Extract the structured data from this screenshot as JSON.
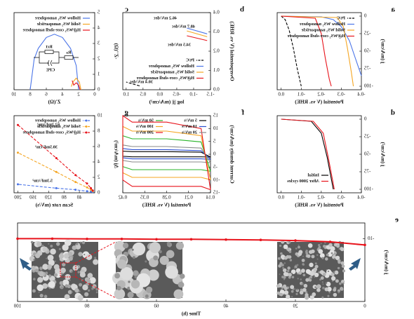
{
  "chart_data": [
    {
      "type": "line",
      "label": "a",
      "xlabel": "Potential (V vs. RHE)",
      "ylabel": "j (mA/cm²)",
      "xlim": [
        -0.4,
        0.02
      ],
      "ylim": [
        -105,
        5
      ],
      "xticks": [
        -0.4,
        -0.3,
        -0.2,
        -0.1,
        {
          "value": 0,
          "label": "0.0"
        }
      ],
      "yticks": [
        0,
        -25,
        -50,
        -75,
        -100
      ],
      "series": [
        {
          "name": "Pt/C",
          "color": "#000000",
          "dashed": true,
          "x": [
            0,
            -0.02,
            -0.04,
            -0.06,
            -0.08,
            -0.1
          ],
          "values": [
            0,
            -5,
            -20,
            -45,
            -75,
            -100
          ]
        },
        {
          "name": "Hollow WS₂ nanosphere",
          "color": "#4a74e8",
          "x": [
            0,
            -0.2,
            -0.26,
            -0.3,
            -0.34,
            -0.37,
            -0.4
          ],
          "values": [
            0,
            -1,
            -5,
            -15,
            -35,
            -60,
            -85
          ]
        },
        {
          "name": "Solid WS₂ nanoparticle",
          "color": "#f5a623",
          "x": [
            0,
            -0.28,
            -0.31,
            -0.33,
            -0.35,
            -0.36
          ],
          "values": [
            0,
            -2,
            -15,
            -45,
            -80,
            -100
          ]
        },
        {
          "name": "H@WS₂ core-shell nanosphere",
          "color": "#e8141c",
          "x": [
            0,
            -0.17,
            -0.2,
            -0.22,
            -0.24,
            -0.25
          ],
          "values": [
            0,
            -3,
            -25,
            -60,
            -90,
            -100
          ]
        }
      ]
    },
    {
      "type": "line",
      "label": "b",
      "xlabel": "log |j| (mA/cm²)",
      "ylabel": "Overpotential (V vs. RHE)",
      "xlim": [
        -1.5,
        1.1
      ],
      "ylim": [
        0,
        0.4
      ],
      "xticks": [
        -1.5,
        {
          "value": -1,
          "label": "-1.0"
        },
        -0.5,
        {
          "value": 0,
          "label": "0.0"
        },
        0.5,
        {
          "value": 1,
          "label": "1.0"
        }
      ],
      "yticks": [
        {
          "value": 0,
          "label": "0.0"
        },
        0.1,
        0.2,
        0.3,
        0.4
      ],
      "series": [
        {
          "name": "Pt/C",
          "color": "#000000",
          "dashed": true,
          "x": [
            0.6,
            0.8,
            1.0
          ],
          "values": [
            0.02,
            0.03,
            0.04
          ]
        },
        {
          "name": "Hollow WS₂ nanosphere",
          "color": "#4a74e8",
          "x": [
            -1.4,
            -0.8
          ],
          "values": [
            0.29,
            0.32
          ]
        },
        {
          "name": "Solid WS₂ nanoparticle",
          "color": "#f5a623",
          "x": [
            -1.4,
            -0.8
          ],
          "values": [
            0.275,
            0.305
          ]
        },
        {
          "name": "H@WS₂ core-shell nanosphere",
          "color": "#e8141c",
          "x": [
            -1.4,
            -0.8
          ],
          "values": [
            0.255,
            0.28
          ]
        }
      ],
      "annotations": [
        {
          "text": "30.4 mV/dec",
          "color": "#000000"
        },
        {
          "text": "46.2 mV/dec",
          "color": "#f5a623"
        },
        {
          "text": "48.7 mV/dec",
          "color": "#4a74e8"
        },
        {
          "text": "34.5 mV/dec",
          "color": "#e8141c"
        }
      ]
    },
    {
      "type": "line",
      "label": "c",
      "xlabel": "Z'(Ω)",
      "ylabel": "-Z''(Ω)",
      "xlim": [
        0,
        10
      ],
      "ylim": [
        0,
        5
      ],
      "xticks": [
        0,
        2,
        4,
        6,
        8,
        10
      ],
      "yticks": [
        0,
        1,
        2,
        3,
        4,
        5
      ],
      "series": [
        {
          "name": "Hollow WS₂ nanosphere",
          "color": "#4a74e8",
          "x": [
            2,
            2.3,
            3,
            4,
            5,
            6,
            7,
            7.5,
            8
          ],
          "values": [
            0,
            1.57,
            2.68,
            3.39,
            3.6,
            3.39,
            2.68,
            1.99,
            0
          ]
        },
        {
          "name": "Solid WS₂ nanoparticle",
          "color": "#f5a623",
          "x": [
            1.7,
            1.9,
            2.3,
            2.7,
            2.9
          ],
          "values": [
            0,
            0.5,
            0.75,
            0.5,
            0.2
          ]
        },
        {
          "name": "H@WS₂ core-shell nanosphere",
          "color": "#e8141c",
          "x": [
            1.8,
            2.0,
            2.3,
            2.6,
            2.8
          ],
          "values": [
            0,
            0.3,
            0.45,
            0.3,
            0.6
          ]
        }
      ],
      "circuit": [
        "Rₛ",
        "Rct",
        "CPE"
      ]
    },
    {
      "type": "line",
      "label": "d",
      "xlabel": "Potential (V vs. RHE)",
      "ylabel": "j (mA/cm²)",
      "xlim": [
        -0.4,
        0.02
      ],
      "ylim": [
        -105,
        5
      ],
      "xticks": [
        -0.4,
        -0.3,
        -0.2,
        -0.1,
        {
          "value": 0,
          "label": "0.0"
        }
      ],
      "yticks": [
        0,
        -25,
        -50,
        -75,
        -100
      ],
      "series": [
        {
          "name": "Initial",
          "color": "#000000",
          "x": [
            0,
            -0.15,
            -0.2,
            -0.23,
            -0.25,
            -0.26
          ],
          "values": [
            0,
            -3,
            -20,
            -55,
            -85,
            -100
          ]
        },
        {
          "name": "After 2000 cycles",
          "color": "#e8141c",
          "x": [
            0,
            -0.16,
            -0.21,
            -0.235,
            -0.255,
            -0.265
          ],
          "values": [
            0,
            -3,
            -20,
            -55,
            -85,
            -100
          ]
        }
      ]
    },
    {
      "type": "line",
      "label": "f",
      "xlabel": "Potential (V vs. RHE)",
      "ylabel": "Current density (mA/cm²)",
      "xlim": [
        0.14,
        0.42
      ],
      "ylim": [
        -15,
        15
      ],
      "xticks": [
        0.14,
        0.21,
        0.28,
        0.35,
        0.42
      ],
      "yticks": [
        -15,
        -10,
        -5,
        0,
        5,
        10,
        15
      ],
      "series": [
        {
          "name": "5 mV/s",
          "color": "#000000",
          "x": [
            0.14,
            0.17,
            0.28,
            0.39,
            0.42,
            0.42,
            0.39,
            0.28,
            0.17,
            0.14
          ],
          "values": [
            -1.1,
            0.8,
            1,
            1,
            1.2,
            -0.8,
            -1,
            -1,
            -1,
            -1.1
          ]
        },
        {
          "name": "10 mV/s",
          "color": "#2d4fd0",
          "x": [
            0.14,
            0.17,
            0.28,
            0.39,
            0.42,
            0.42,
            0.39,
            0.28,
            0.17,
            0.14
          ],
          "values": [
            -2,
            1.4,
            1.8,
            1.8,
            2.2,
            -1.4,
            -1.8,
            -1.8,
            -1.8,
            -2
          ]
        },
        {
          "name": "20 mV/s",
          "color": "#8a8a8a",
          "x": [
            0.14,
            0.17,
            0.28,
            0.39,
            0.42,
            0.42,
            0.39,
            0.28,
            0.17,
            0.14
          ],
          "values": [
            -3.3,
            2.4,
            3,
            3,
            3.6,
            -2.4,
            -3,
            -3,
            -3,
            -3.3
          ]
        },
        {
          "name": "50 mV/s",
          "color": "#28b428",
          "x": [
            0.14,
            0.17,
            0.28,
            0.39,
            0.42,
            0.42,
            0.39,
            0.28,
            0.17,
            0.14
          ],
          "values": [
            -6.6,
            4.8,
            6,
            6,
            7.2,
            -4.8,
            -6,
            -6,
            -6,
            -6.6
          ]
        },
        {
          "name": "100 mV/s",
          "color": "#f5a623",
          "x": [
            0.14,
            0.17,
            0.28,
            0.39,
            0.42,
            0.42,
            0.39,
            0.28,
            0.17,
            0.14
          ],
          "values": [
            -9.9,
            7.2,
            9,
            9,
            10.8,
            -7.2,
            -9,
            -9,
            -9,
            -9.9
          ]
        },
        {
          "name": "200 mV/s",
          "color": "#e8141c",
          "x": [
            0.14,
            0.17,
            0.28,
            0.39,
            0.42,
            0.42,
            0.39,
            0.28,
            0.17,
            0.14
          ],
          "values": [
            -13.8,
            10,
            12.5,
            12.5,
            15,
            -10,
            -12.5,
            -12.5,
            -12.5,
            -13.8
          ]
        }
      ]
    },
    {
      "type": "scatter",
      "label": "g",
      "xlabel": "Scan rate (mV/s)",
      "ylabel": "Δj (mA/cm²)",
      "xlim": [
        0,
        210
      ],
      "ylim": [
        0,
        10
      ],
      "xticks": [
        40,
        80,
        120,
        160,
        200
      ],
      "yticks": [
        0,
        2,
        4,
        6,
        8,
        10
      ],
      "series": [
        {
          "name": "Hollow WS₂ nanosphere",
          "color": "#4a74e8",
          "dashed": true,
          "x": [
            5,
            10,
            20,
            50,
            100,
            200
          ],
          "values": [
            0.1,
            0.15,
            0.2,
            0.4,
            0.6,
            1.1
          ]
        },
        {
          "name": "Solid WS₂ nanoparticle",
          "color": "#f5a623",
          "dashed": true,
          "x": [
            5,
            10,
            20,
            50,
            100,
            200
          ],
          "values": [
            0.2,
            0.4,
            0.7,
            1.4,
            2.7,
            5.2
          ]
        },
        {
          "name": "H@WS₂ core-shell nanosphere",
          "color": "#e8141c",
          "dashed": true,
          "x": [
            5,
            10,
            20,
            50,
            100,
            200
          ],
          "values": [
            0.3,
            0.6,
            1.2,
            2.3,
            4.5,
            8.8
          ]
        }
      ],
      "annotations": [
        {
          "text": "62.2mF/cm²",
          "color": "#e8141c"
        },
        {
          "text": "30.5mF/cm²",
          "color": "#f5a623"
        },
        {
          "text": "5.3mF/cm²",
          "color": "#4a74e8"
        }
      ]
    },
    {
      "type": "line",
      "label": "e",
      "xlabel": "Time (h)",
      "ylabel": "j (mA/cm²)",
      "xlim": [
        0,
        100
      ],
      "ylim": [
        -30,
        -5
      ],
      "xticks": [
        0,
        20,
        40,
        60,
        80,
        100
      ],
      "yticks": [
        -10
      ],
      "series": [
        {
          "color": "#e8141c",
          "markers": true,
          "x": [
            0,
            10,
            20,
            30,
            40,
            50,
            60,
            70,
            80,
            90,
            100
          ],
          "values": [
            -12,
            -11,
            -10.6,
            -10.4,
            -10.3,
            -10.2,
            -10.2,
            -10.1,
            -10.1,
            -10,
            -10
          ]
        }
      ]
    }
  ]
}
